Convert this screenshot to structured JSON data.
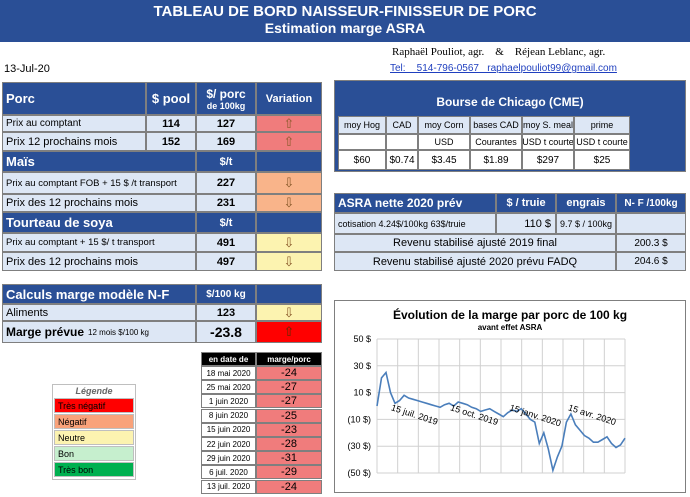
{
  "title": {
    "line1": "TABLEAU DE BORD NAISSEUR-FINISSEUR DE PORC",
    "line2": "Estimation marge ASRA"
  },
  "authors": {
    "names": "Raphaël Pouliot, agr.    &    Réjean Leblanc, agr.",
    "contact": "Tel:    514-796-0567   raphaelpouliot99@gmail.com"
  },
  "date": "13-Jul-20",
  "porc": {
    "header": "Porc",
    "col_pool": "$ pool",
    "col_porc": "$/ porc",
    "col_porc_sub": "de 100kg",
    "col_var": "Variation",
    "rows": [
      {
        "label": "Prix au comptant",
        "pool": "114",
        "porc": "127",
        "arrow": "⇧"
      },
      {
        "label": "Prix 12 prochains mois",
        "pool": "152",
        "porc": "169",
        "arrow": "⇧"
      }
    ]
  },
  "mais": {
    "header": "Maïs",
    "unit": "$/t",
    "rows": [
      {
        "label": "Prix au comptant FOB + 15 $ /t transport",
        "value": "227",
        "arrow": "⇩"
      },
      {
        "label": "Prix des 12 prochains mois",
        "value": "231",
        "arrow": "⇩"
      }
    ]
  },
  "soya": {
    "header": "Tourteau de soya",
    "unit": "$/t",
    "rows": [
      {
        "label": "Prix au comptant + 15 $/ t  transport",
        "value": "491",
        "arrow": "⇩"
      },
      {
        "label": "Prix des 12 prochains mois",
        "value": "497",
        "arrow": "⇩"
      }
    ]
  },
  "calc": {
    "header": "Calculs marge  modèle N-F",
    "unit": "$/100 kg",
    "aliments_label": "Aliments",
    "aliments_value": "123",
    "aliments_arrow": "⇩",
    "marge_label": "Marge prévue",
    "marge_sub": "12 mois  $/100 kg",
    "marge_value": "-23.8",
    "marge_arrow": "⇧"
  },
  "history": {
    "col_date": "en date de",
    "col_marge": "marge/porc",
    "rows": [
      {
        "date": "18 mai 2020",
        "value": "-24"
      },
      {
        "date": "25 mai 2020",
        "value": "-27"
      },
      {
        "date": "1 juin 2020",
        "value": "-27"
      },
      {
        "date": "8 juin 2020",
        "value": "-25"
      },
      {
        "date": "15 juin 2020",
        "value": "-23"
      },
      {
        "date": "22 juin 2020",
        "value": "-28"
      },
      {
        "date": "29 juin 2020",
        "value": "-31"
      },
      {
        "date": "6 juil. 2020",
        "value": "-29"
      },
      {
        "date": "13 juil. 2020",
        "value": "-24"
      }
    ]
  },
  "legend": {
    "title": "Légende",
    "items": [
      {
        "label": "Très négatif",
        "color": "#ff0000"
      },
      {
        "label": "Négatif",
        "color": "#f9a27a"
      },
      {
        "label": "Neutre",
        "color": "#fcf3b0"
      },
      {
        "label": "Bon",
        "color": "#c6efce"
      },
      {
        "label": "Très bon",
        "color": "#00b050"
      }
    ]
  },
  "cme": {
    "header": "Bourse de Chicago (CME)",
    "cols": [
      "moy Hog",
      "CAD",
      "moy Corn",
      "bases CAD",
      "moy S. meal",
      "prime"
    ],
    "units": [
      "",
      "",
      "USD",
      "Courantes",
      "USD t courte",
      "USD t courte"
    ],
    "values": [
      "$60",
      "$0.74",
      "$3.45",
      "$1.89",
      "$297",
      "$25"
    ]
  },
  "asra": {
    "header": "ASRA nette 2020 prév",
    "col_truie": "$ / truie",
    "col_engrais": "engrais",
    "col_nf": "N- F /100kg",
    "cotisation_label": "cotisation 4.24$/100kg  63$/truie",
    "truie_value": "110  $",
    "engrais_value": "9.7  $ / 100kg",
    "rev2019_label": "Revenu stabilisé ajusté 2019 final",
    "rev2019_value": "200.3 $",
    "rev2020_label": "Revenu stabilisé ajusté 2020 prévu FADQ",
    "rev2020_value": "204.6 $"
  },
  "chart_data": {
    "type": "line",
    "title": "Évolution de la marge par porc de 100 kg",
    "subtitle": "avant effet ASRA",
    "ylim": [
      -50,
      50
    ],
    "yticks": [
      "50 $",
      "30 $",
      "10 $",
      "(10 $)",
      "(30 $)",
      "(50 $)"
    ],
    "xticks": [
      "15 juil. 2019",
      "15 oct. 2019",
      "15 janv. 2020",
      "15 avr. 2020"
    ],
    "grid": true,
    "series": [
      {
        "x": [
          "2019-06-24",
          "2019-07-01",
          "2019-07-08",
          "2019-07-15",
          "2019-07-22",
          "2019-07-29",
          "2019-08-05",
          "2019-08-12",
          "2019-08-19",
          "2019-08-26",
          "2019-09-02",
          "2019-09-09",
          "2019-09-16",
          "2019-09-23",
          "2019-09-30",
          "2019-10-07",
          "2019-10-14",
          "2019-10-21",
          "2019-10-28",
          "2019-11-04",
          "2019-11-11",
          "2019-11-18",
          "2019-11-25",
          "2019-12-02",
          "2019-12-09",
          "2019-12-16",
          "2019-12-23",
          "2019-12-30",
          "2020-01-06",
          "2020-01-13",
          "2020-01-20",
          "2020-01-27",
          "2020-02-03",
          "2020-02-10",
          "2020-02-17",
          "2020-02-24",
          "2020-03-02",
          "2020-03-09",
          "2020-03-16",
          "2020-03-23",
          "2020-03-30",
          "2020-04-06",
          "2020-04-13",
          "2020-04-20",
          "2020-04-27",
          "2020-05-04",
          "2020-05-11",
          "2020-05-18",
          "2020-05-25",
          "2020-06-01",
          "2020-06-08",
          "2020-06-15",
          "2020-06-22",
          "2020-06-29",
          "2020-07-06",
          "2020-07-13"
        ],
        "values": [
          0,
          21,
          25,
          10,
          2,
          4,
          8,
          6,
          5,
          4,
          3,
          2,
          1,
          0,
          -1,
          1,
          2,
          0,
          3,
          2,
          1,
          -1,
          -2,
          -4,
          -3,
          -2,
          -4,
          -6,
          -8,
          -5,
          -3,
          -4,
          -2,
          -6,
          -10,
          -12,
          -28,
          -20,
          -32,
          -48,
          -38,
          -30,
          -12,
          -6,
          -14,
          -18,
          -22,
          -24,
          -27,
          -27,
          -25,
          -23,
          -28,
          -31,
          -29,
          -24
        ]
      }
    ]
  }
}
